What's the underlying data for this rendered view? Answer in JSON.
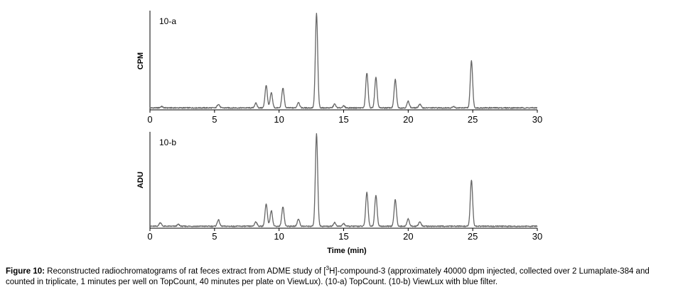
{
  "chart_data": [
    {
      "type": "line",
      "panel_label": "10-a",
      "xlabel": "",
      "ylabel": "CPM",
      "xlim": [
        0,
        30
      ],
      "ylim": [
        0,
        100
      ],
      "x_ticks": [
        "0",
        "5",
        "10",
        "15",
        "20",
        "25",
        "30"
      ],
      "series": [
        {
          "color": "#666666",
          "peaks": [
            {
              "x": 0.9,
              "y": 1.5
            },
            {
              "x": 5.3,
              "y": 4
            },
            {
              "x": 8.2,
              "y": 5
            },
            {
              "x": 9.0,
              "y": 24
            },
            {
              "x": 9.4,
              "y": 16
            },
            {
              "x": 10.3,
              "y": 21
            },
            {
              "x": 11.5,
              "y": 6
            },
            {
              "x": 12.9,
              "y": 100
            },
            {
              "x": 14.3,
              "y": 4
            },
            {
              "x": 15.0,
              "y": 2
            },
            {
              "x": 16.8,
              "y": 37
            },
            {
              "x": 17.5,
              "y": 32
            },
            {
              "x": 19.0,
              "y": 30
            },
            {
              "x": 20.0,
              "y": 7
            },
            {
              "x": 20.9,
              "y": 4
            },
            {
              "x": 23.5,
              "y": 1.5
            },
            {
              "x": 24.9,
              "y": 50
            }
          ]
        }
      ]
    },
    {
      "type": "line",
      "panel_label": "10-b",
      "xlabel": "Time (min)",
      "ylabel": "ADU",
      "xlim": [
        0,
        30
      ],
      "ylim": [
        0,
        100
      ],
      "x_ticks": [
        "0",
        "5",
        "10",
        "15",
        "20",
        "25",
        "30"
      ],
      "series": [
        {
          "color": "#666666",
          "peaks": [
            {
              "x": 0.8,
              "y": 4
            },
            {
              "x": 2.2,
              "y": 2
            },
            {
              "x": 5.3,
              "y": 7
            },
            {
              "x": 8.2,
              "y": 5
            },
            {
              "x": 9.0,
              "y": 24
            },
            {
              "x": 9.4,
              "y": 17
            },
            {
              "x": 10.3,
              "y": 21
            },
            {
              "x": 11.5,
              "y": 8
            },
            {
              "x": 12.9,
              "y": 100
            },
            {
              "x": 14.3,
              "y": 4
            },
            {
              "x": 15.0,
              "y": 3
            },
            {
              "x": 16.8,
              "y": 37
            },
            {
              "x": 17.5,
              "y": 34
            },
            {
              "x": 19.0,
              "y": 29
            },
            {
              "x": 20.0,
              "y": 8
            },
            {
              "x": 20.9,
              "y": 5
            },
            {
              "x": 24.9,
              "y": 50
            }
          ]
        }
      ]
    }
  ],
  "caption": {
    "label": "Figure 10:",
    "text_before_sup": " Reconstructed radiochromatograms of rat feces extract  from ADME study of [",
    "sup": "3",
    "text_after_sup": "H]-compound-3 (approximately 40000 dpm injected, collected over 2 Lumaplate-384 and counted in triplicate, 1 minutes per well on TopCount, 40 minutes per plate on ViewLux). (10-a) TopCount. (10-b) ViewLux with blue filter."
  }
}
